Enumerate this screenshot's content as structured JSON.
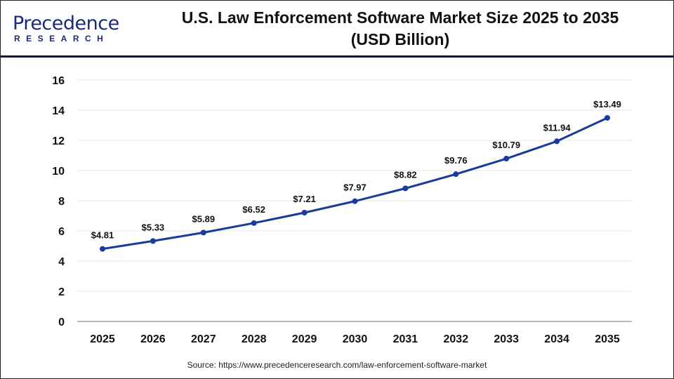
{
  "logo": {
    "name": "Precedence",
    "sub": "RESEARCH"
  },
  "chart_data": {
    "type": "line",
    "title": "U.S. Law Enforcement Software Market Size 2025 to 2035",
    "subtitle": "(USD Billion)",
    "categories": [
      "2025",
      "2026",
      "2027",
      "2028",
      "2029",
      "2030",
      "2031",
      "2032",
      "2033",
      "2034",
      "2035"
    ],
    "values": [
      4.81,
      5.33,
      5.89,
      6.52,
      7.21,
      7.97,
      8.82,
      9.76,
      10.79,
      11.94,
      13.49
    ],
    "data_labels": [
      "$4.81",
      "$5.33",
      "$5.89",
      "$6.52",
      "$7.21",
      "$7.97",
      "$8.82",
      "$9.76",
      "$10.79",
      "$11.94",
      "$13.49"
    ],
    "yticks": [
      0,
      2,
      4,
      6,
      8,
      10,
      12,
      14,
      16
    ],
    "ylim": [
      0,
      16
    ],
    "xlabel": "",
    "ylabel": "",
    "grid": true,
    "line_color": "#1a3a9c"
  },
  "source": "Source: https://www.precedenceresearch.com/law-enforcement-software-market"
}
